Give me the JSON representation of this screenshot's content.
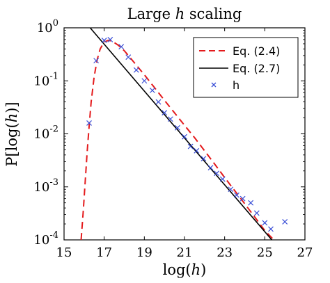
{
  "chart_data": {
    "type": "line",
    "title_prefix": "Large ",
    "title_var": "h",
    "title_suffix": " scaling",
    "xlabel_prefix": "log(",
    "xlabel_var": "h",
    "xlabel_suffix": ")",
    "ylabel_prefix": "P[log(",
    "ylabel_var": "h",
    "ylabel_suffix": ")]",
    "xlim": [
      15,
      27
    ],
    "ylim": [
      0.0001,
      1
    ],
    "yscale": "log",
    "xticks": [
      15,
      17,
      19,
      21,
      23,
      25,
      27
    ],
    "xtick_labels": [
      "15",
      "17",
      "19",
      "21",
      "23",
      "25",
      "27"
    ],
    "yticks": [
      {
        "value": 1,
        "base": "10",
        "exp": "0"
      },
      {
        "value": 0.1,
        "base": "10",
        "exp": "-1"
      },
      {
        "value": 0.01,
        "base": "10",
        "exp": "-2"
      },
      {
        "value": 0.001,
        "base": "10",
        "exp": "-3"
      },
      {
        "value": 0.0001,
        "base": "10",
        "exp": "-4"
      }
    ],
    "grid": false,
    "legend_position": "top-right",
    "series": [
      {
        "name": "Eq. (2.4)",
        "style": "dashed",
        "color": "#e41a1c",
        "x": [
          15.85,
          15.95,
          16.05,
          16.15,
          16.25,
          16.35,
          16.5,
          16.65,
          16.8,
          17.0,
          17.2,
          17.4,
          17.7,
          18.0,
          18.5,
          19.0,
          19.5,
          20.0,
          20.5,
          21.0,
          21.5,
          22.0,
          22.5,
          23.0,
          23.5,
          24.0,
          24.5,
          25.0,
          25.45
        ],
        "y": [
          0.0001,
          0.00032,
          0.0012,
          0.0045,
          0.014,
          0.04,
          0.12,
          0.25,
          0.4,
          0.54,
          0.58,
          0.56,
          0.47,
          0.37,
          0.22,
          0.13,
          0.075,
          0.043,
          0.025,
          0.0145,
          0.0085,
          0.0048,
          0.0027,
          0.0015,
          0.00085,
          0.00048,
          0.00027,
          0.00015,
          0.0001
        ]
      },
      {
        "name": "Eq. (2.7)",
        "style": "solid",
        "color": "#000000",
        "x": [
          16.3,
          25.35
        ],
        "y": [
          1.0,
          0.0001
        ]
      },
      {
        "name": "h",
        "style": "markers",
        "marker": "x",
        "color": "#3a4fd6",
        "x": [
          16.25,
          16.6,
          17.0,
          17.3,
          17.85,
          18.2,
          18.6,
          19.0,
          19.4,
          19.7,
          20.0,
          20.3,
          20.65,
          21.0,
          21.3,
          21.6,
          21.95,
          22.3,
          22.6,
          22.9,
          23.3,
          23.6,
          23.9,
          24.3,
          24.6,
          25.0,
          25.3,
          26.0
        ],
        "y": [
          0.016,
          0.24,
          0.58,
          0.6,
          0.44,
          0.28,
          0.16,
          0.1,
          0.066,
          0.04,
          0.025,
          0.019,
          0.013,
          0.0088,
          0.0058,
          0.0048,
          0.0034,
          0.0023,
          0.0018,
          0.0014,
          0.0009,
          0.0007,
          0.0006,
          0.0005,
          0.00032,
          0.00021,
          0.00016,
          0.00022
        ]
      }
    ]
  }
}
